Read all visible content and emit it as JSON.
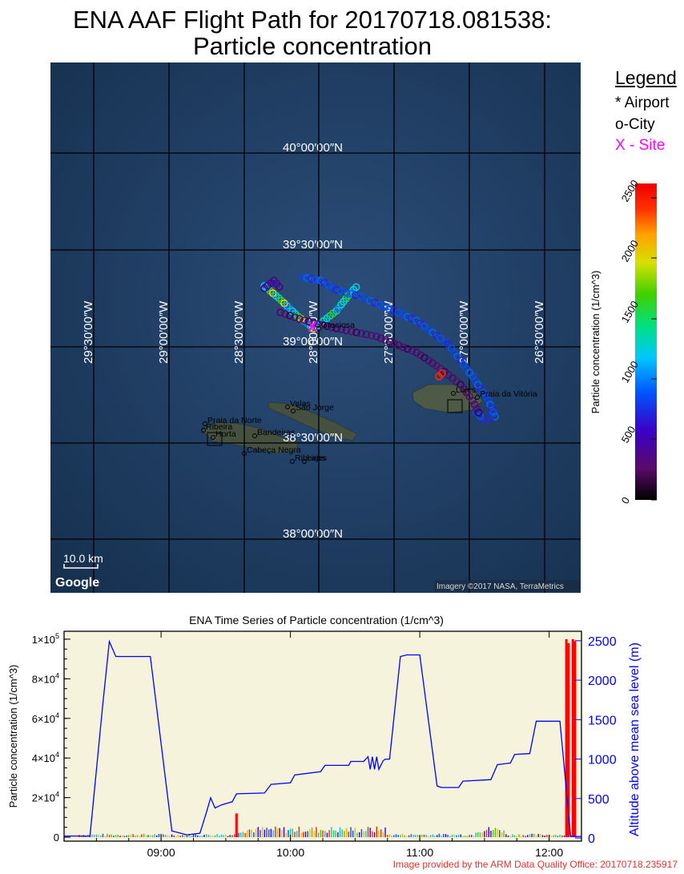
{
  "title_line1": "ENA AAF Flight Path for 20170718.081538:",
  "title_line2": "Particle concentration",
  "legend": {
    "title": "Legend",
    "airport": "* Airport",
    "city": "o-City",
    "site": "X - Site",
    "site_color": "#ff00ff"
  },
  "map": {
    "lat_labels": [
      "40°00′00″N",
      "39°30′00″N",
      "39°00′00″N",
      "38°30′00″N",
      "38°00′00″N"
    ],
    "lon_labels": [
      "29°30′00″W",
      "29°00′00″W",
      "28°30′00″W",
      "28°00′00″W",
      "27°30′00″W",
      "27°00′00″W",
      "26°30′00″W"
    ],
    "place_labels": [
      "Praia da Norte",
      "Ribeira",
      "Horta",
      "Bandeiras",
      "Cabeça Negra",
      "Velas",
      "São Jorge",
      "Ribeiras",
      "Lajes",
      "Graciosa",
      "Lajes",
      "Praia da Vitória"
    ],
    "scale_label": "10.0 km",
    "google_label": "Google",
    "imagery_label": "Imagery ©2017 NASA, TerraMetrics",
    "ocean_color": "#1f3f66"
  },
  "colorbar": {
    "label": "Particle concentration  (1/cm^3)",
    "ticks": [
      "0",
      "500",
      "1000",
      "1500",
      "2000",
      "2500"
    ]
  },
  "chart_data": {
    "type": "line",
    "title": "ENA Time Series of Particle concentration (1/cm^3)",
    "xlabel": "",
    "x_ticks": [
      "09:00",
      "10:00",
      "11:00",
      "12:00"
    ],
    "xlim": [
      "08:15",
      "12:15"
    ],
    "ylabel_left": "Particle concentration  (1/cm^3)",
    "ylabel_right": "Altitude above mean sea level (m)",
    "ylim_left": [
      -2000,
      104000
    ],
    "ylim_right": [
      -40,
      2620
    ],
    "y_ticks_left": [
      {
        "value": 0,
        "mant": "0",
        "exp": ""
      },
      {
        "value": 20000,
        "mant": "2×10",
        "exp": "4"
      },
      {
        "value": 40000,
        "mant": "4×10",
        "exp": "4"
      },
      {
        "value": 60000,
        "mant": "6×10",
        "exp": "4"
      },
      {
        "value": 80000,
        "mant": "8×10",
        "exp": "4"
      },
      {
        "value": 100000,
        "mant": "1×10",
        "exp": "5"
      }
    ],
    "y_ticks_right": [
      "0",
      "500",
      "1000",
      "1500",
      "2000",
      "2500"
    ],
    "altitude_series": {
      "name": "Altitude",
      "color": "#0000ff",
      "points": [
        [
          "08:15",
          25
        ],
        [
          "08:27",
          25
        ],
        [
          "08:28",
          300
        ],
        [
          "08:33",
          1700
        ],
        [
          "08:36",
          2490
        ],
        [
          "08:39",
          2300
        ],
        [
          "08:55",
          2300
        ],
        [
          "09:05",
          90
        ],
        [
          "09:12",
          40
        ],
        [
          "09:18",
          60
        ],
        [
          "09:21",
          320
        ],
        [
          "09:23",
          510
        ],
        [
          "09:25",
          380
        ],
        [
          "09:28",
          420
        ],
        [
          "09:33",
          460
        ],
        [
          "09:35",
          560
        ],
        [
          "09:48",
          570
        ],
        [
          "09:51",
          680
        ],
        [
          "10:00",
          700
        ],
        [
          "10:02",
          800
        ],
        [
          "10:14",
          840
        ],
        [
          "10:16",
          920
        ],
        [
          "10:27",
          920
        ],
        [
          "10:28",
          970
        ],
        [
          "10:34",
          970
        ],
        [
          "10:36",
          1030
        ],
        [
          "10:37",
          870
        ],
        [
          "10:38",
          1030
        ],
        [
          "10:39",
          870
        ],
        [
          "10:40",
          1030
        ],
        [
          "10:41",
          870
        ],
        [
          "10:43",
          980
        ],
        [
          "10:44",
          1000
        ],
        [
          "10:46",
          1000
        ],
        [
          "10:51",
          2300
        ],
        [
          "10:54",
          2320
        ],
        [
          "11:00",
          2320
        ],
        [
          "11:08",
          660
        ],
        [
          "11:10",
          640
        ],
        [
          "11:18",
          640
        ],
        [
          "11:20",
          720
        ],
        [
          "11:33",
          740
        ],
        [
          "11:36",
          930
        ],
        [
          "11:42",
          950
        ],
        [
          "11:44",
          1060
        ],
        [
          "11:51",
          1070
        ],
        [
          "11:54",
          1480
        ],
        [
          "12:05",
          1480
        ],
        [
          "12:10",
          20
        ],
        [
          "12:15",
          20
        ]
      ]
    },
    "concentration_spikes": {
      "name": "Particle concentration",
      "color": "#ff0000",
      "points": [
        [
          "09:35",
          12000
        ],
        [
          "12:08",
          100000
        ],
        [
          "12:09",
          98000
        ],
        [
          "12:11",
          100000
        ],
        [
          "12:12",
          99000
        ]
      ]
    }
  }
}
